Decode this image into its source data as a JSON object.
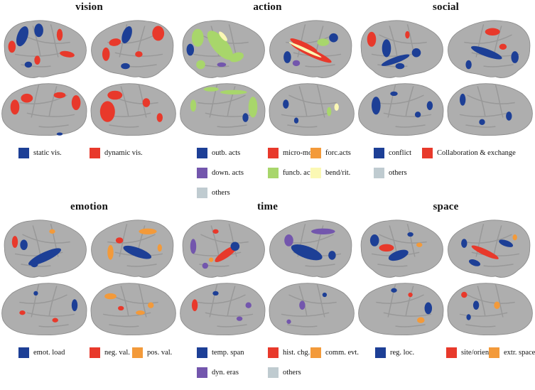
{
  "colors": {
    "cortex": "#aeaeae",
    "cortex_edge": "#8a8a8a",
    "sulcus": "#989898",
    "blue": "#1d3f96",
    "red": "#e8392b",
    "orange": "#f39a3a",
    "purple": "#7356ad",
    "green": "#a8d66b",
    "yellow": "#fbf8b4",
    "grey": "#bfcbd0"
  },
  "panels": [
    {
      "title": "vision",
      "legend": [
        {
          "label": "static vis.",
          "color": "blue"
        },
        {
          "label": "dynamic vis.",
          "color": "red"
        }
      ]
    },
    {
      "title": "action",
      "legend": [
        {
          "label": "outb. acts",
          "color": "blue"
        },
        {
          "label": "micro-mov.",
          "color": "red"
        },
        {
          "label": "forc.acts",
          "color": "orange"
        },
        {
          "label": "down. acts",
          "color": "purple"
        },
        {
          "label": "funcb. acts",
          "color": "green"
        },
        {
          "label": "bend/rit.",
          "color": "yellow"
        },
        {
          "label": "others",
          "color": "grey"
        }
      ]
    },
    {
      "title": "social",
      "legend": [
        {
          "label": "conflict",
          "color": "blue"
        },
        {
          "label": "Collaboration & exchange",
          "color": "red"
        },
        {
          "label": "others",
          "color": "grey"
        }
      ]
    },
    {
      "title": "emotion",
      "legend": [
        {
          "label": "emot. load",
          "color": "blue"
        },
        {
          "label": "neg. val.",
          "color": "red"
        },
        {
          "label": "pos. val.",
          "color": "orange"
        }
      ]
    },
    {
      "title": "time",
      "legend": [
        {
          "label": "temp. span",
          "color": "blue"
        },
        {
          "label": "hist. chg.",
          "color": "red"
        },
        {
          "label": "comm. evt.",
          "color": "orange"
        },
        {
          "label": "dyn. eras",
          "color": "purple"
        },
        {
          "label": "others",
          "color": "grey"
        }
      ]
    },
    {
      "title": "space",
      "legend": [
        {
          "label": "reg. loc.",
          "color": "blue"
        },
        {
          "label": "site/orient.",
          "color": "red"
        },
        {
          "label": "extr. space",
          "color": "orange"
        }
      ]
    }
  ]
}
